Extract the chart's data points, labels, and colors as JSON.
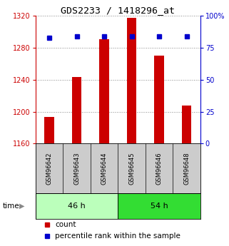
{
  "title": "GDS2233 / 1418296_at",
  "samples": [
    "GSM96642",
    "GSM96643",
    "GSM96644",
    "GSM96645",
    "GSM96646",
    "GSM96648"
  ],
  "counts": [
    1193,
    1243,
    1291,
    1318,
    1270,
    1208
  ],
  "percentiles": [
    83,
    84,
    84,
    84,
    84,
    84
  ],
  "ylim_left": [
    1160,
    1320
  ],
  "ylim_right": [
    0,
    100
  ],
  "yticks_left": [
    1160,
    1200,
    1240,
    1280,
    1320
  ],
  "yticks_right": [
    0,
    25,
    50,
    75,
    100
  ],
  "bar_color": "#cc0000",
  "dot_color": "#0000cc",
  "bar_width": 0.35,
  "groups": [
    {
      "label": "46 h",
      "indices": [
        0,
        1,
        2
      ],
      "color": "#bbffbb"
    },
    {
      "label": "54 h",
      "indices": [
        3,
        4,
        5
      ],
      "color": "#33dd33"
    }
  ],
  "time_label": "time",
  "legend_count": "count",
  "legend_percentile": "percentile rank within the sample",
  "background_color": "#ffffff"
}
